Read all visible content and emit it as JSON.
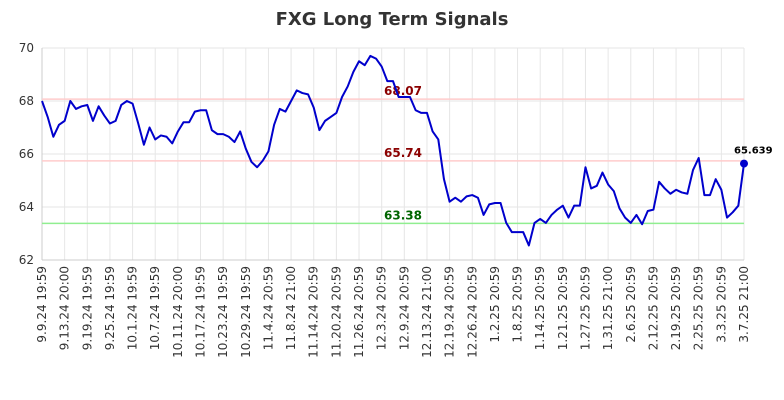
{
  "chart_data": {
    "type": "line",
    "title": "FXG Long Term Signals",
    "xlabel": "",
    "ylabel": "",
    "ylim": [
      62,
      70
    ],
    "yticks": [
      62,
      64,
      66,
      68,
      70
    ],
    "grid": true,
    "line_color": "#0000cc",
    "x_tick_labels": [
      "9.9.24 19:59",
      "9.13.24 20:00",
      "9.19.24 19:59",
      "9.25.24 19:59",
      "10.1.24 19:59",
      "10.7.24 19:59",
      "10.11.24 20:00",
      "10.17.24 19:59",
      "10.23.24 19:59",
      "10.29.24 19:59",
      "11.4.24 20:59",
      "11.8.24 21:00",
      "11.14.24 20:59",
      "11.20.24 20:59",
      "11.26.24 20:59",
      "12.3.24 20:59",
      "12.9.24 20:59",
      "12.13.24 21:00",
      "12.19.24 20:59",
      "12.26.24 20:59",
      "1.2.25 20:59",
      "1.8.25 20:59",
      "1.14.25 20:59",
      "1.21.25 20:59",
      "1.27.25 20:59",
      "1.31.25 21:00",
      "2.6.25 20:59",
      "2.12.25 20:59",
      "2.19.25 20:59",
      "2.25.25 20:59",
      "3.3.25 20:59",
      "3.7.25 21:00"
    ],
    "x_tick_positions": [
      0,
      4,
      8,
      12,
      16,
      20,
      24,
      28,
      32,
      36,
      40,
      44,
      48,
      52,
      56,
      60,
      64,
      68,
      72,
      76,
      80,
      84,
      88,
      92,
      96,
      100,
      104,
      108,
      112,
      116,
      120,
      124
    ],
    "series": [
      {
        "values": [
          68.0,
          67.4,
          66.65,
          67.1,
          67.25,
          68.0,
          67.7,
          67.8,
          67.85,
          67.25,
          67.8,
          67.45,
          67.15,
          67.25,
          67.85,
          68.0,
          67.9,
          67.15,
          66.35,
          67.0,
          66.55,
          66.7,
          66.65,
          66.4,
          66.85,
          67.2,
          67.2,
          67.6,
          67.65,
          67.65,
          66.9,
          66.75,
          66.75,
          66.65,
          66.45,
          66.85,
          66.2,
          65.7,
          65.5,
          65.75,
          66.1,
          67.1,
          67.7,
          67.6,
          68.0,
          68.4,
          68.3,
          68.25,
          67.75,
          66.9,
          67.25,
          67.4,
          67.55,
          68.15,
          68.55,
          69.1,
          69.5,
          69.35,
          69.7,
          69.6,
          69.3,
          68.75,
          68.75,
          68.15,
          68.15,
          68.15,
          67.65,
          67.55,
          67.55,
          66.85,
          66.55,
          65.05,
          64.2,
          64.35,
          64.2,
          64.4,
          64.45,
          64.35,
          63.7,
          64.1,
          64.15,
          64.15,
          63.4,
          63.05,
          63.05,
          63.05,
          62.55,
          63.4,
          63.55,
          63.4,
          63.7,
          63.9,
          64.05,
          63.6,
          64.05,
          64.05,
          65.5,
          64.7,
          64.8,
          65.3,
          64.85,
          64.6,
          63.95,
          63.6,
          63.4,
          63.7,
          63.35,
          63.85,
          63.9,
          64.95,
          64.7,
          64.5,
          64.65,
          64.55,
          64.5,
          65.4,
          65.85,
          64.45,
          64.45,
          65.05,
          64.65,
          63.6,
          63.8,
          64.05,
          65.639
        ]
      }
    ],
    "reference_lines": [
      {
        "value": 68.07,
        "label": "68.07",
        "line_color": "#ffcccc",
        "label_color": "#8b0000"
      },
      {
        "value": 65.74,
        "label": "65.74",
        "line_color": "#ffcccc",
        "label_color": "#8b0000"
      },
      {
        "value": 63.38,
        "label": "63.38",
        "line_color": "#90ee90",
        "label_color": "#006400"
      }
    ],
    "last_value_label": "65.639"
  }
}
